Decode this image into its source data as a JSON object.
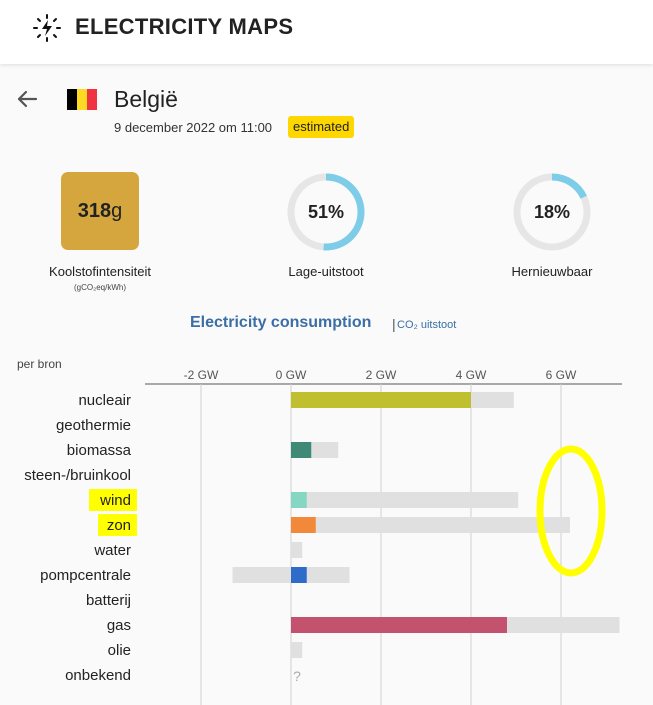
{
  "app": {
    "title": "ELECTRICITY MAPS",
    "logo_icon": "lightning-icon"
  },
  "zone": {
    "back_icon": "arrow-left-icon",
    "country": "België",
    "flag_colors": [
      "#000000",
      "#fdda24",
      "#ef3340"
    ],
    "datetime": "9 december 2022 om 11:00",
    "badge": "estimated",
    "badge_color": "#ffd700"
  },
  "metrics": {
    "carbon": {
      "value": "318",
      "unit": "g",
      "label": "Koolstofintensiteit",
      "sub": "(gCO₂eq/kWh)",
      "color": "#d4a63d"
    },
    "lowcarbon": {
      "value": "51%",
      "fraction": 0.51,
      "label": "Lage-uitstoot"
    },
    "renewable": {
      "value": "18%",
      "fraction": 0.18,
      "label": "Hernieuwbaar"
    },
    "ring_color": "#7ecde8",
    "ring_bg": "#e6e6e6"
  },
  "consumption": {
    "title": "Electricity consumption",
    "separator": "|",
    "co2_link": "CO₂ uitstoot",
    "per_source": "per bron"
  },
  "chart_data": {
    "type": "bar",
    "orientation": "horizontal",
    "xlabel": "",
    "x_ticks": [
      "-2 GW",
      "0 GW",
      "2 GW",
      "4 GW",
      "6 GW"
    ],
    "x_tick_values": [
      -2,
      0,
      2,
      4,
      6
    ],
    "xlim": [
      -3.2,
      7.4
    ],
    "categories": [
      "nucleair",
      "geothermie",
      "biomassa",
      "steen-/bruinkool",
      "wind",
      "zon",
      "water",
      "pompcentrale",
      "batterij",
      "gas",
      "olie",
      "onbekend"
    ],
    "series": [
      {
        "values": [
          4.0,
          null,
          0.45,
          null,
          0.35,
          0.55,
          0,
          0.35,
          null,
          4.8,
          0,
          null
        ],
        "colors": [
          "#bfbf2f",
          null,
          "#3f8a77",
          null,
          "#86d6c4",
          "#f2883a",
          null,
          "#2d6cc9",
          null,
          "#c3526e",
          null,
          null
        ]
      },
      {
        "values": [
          4.95,
          null,
          1.05,
          null,
          5.05,
          6.2,
          0.2,
          1.3,
          null,
          7.3,
          0.25,
          null
        ],
        "min_values": [
          0,
          null,
          0,
          null,
          0,
          0,
          0,
          -1.3,
          null,
          0,
          0,
          null
        ],
        "color": "#e0e0e0"
      }
    ],
    "unknown_marker": "?",
    "highlighted_categories": [
      "wind",
      "zon"
    ],
    "highlight_color": "#ffff00",
    "grid": true
  }
}
